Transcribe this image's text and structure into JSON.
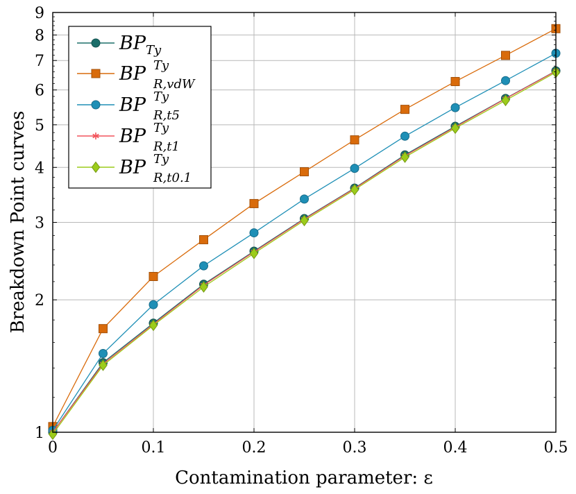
{
  "chart_data": {
    "type": "line",
    "title": "",
    "xlabel": "Contamination parameter: ε",
    "ylabel": "Breakdown Point curves",
    "y_scale": "log",
    "xlim": [
      0,
      0.5
    ],
    "ylim": [
      1,
      9
    ],
    "x_ticks": [
      "0",
      "0.1",
      "0.2",
      "0.3",
      "0.4",
      "0.5"
    ],
    "y_ticks": [
      "1",
      "2",
      "3",
      "4",
      "5",
      "6",
      "7",
      "8",
      "9"
    ],
    "grid": true,
    "legend_position": "top-left",
    "x": [
      0,
      0.05,
      0.1,
      0.15,
      0.2,
      0.25,
      0.3,
      0.35,
      0.4,
      0.45,
      0.5
    ],
    "series": [
      {
        "name": "BP_{Ty}",
        "label_base": "BP",
        "label_sup": "",
        "label_sub": "Ty",
        "color": "#1b6e6a",
        "marker": "circle",
        "values": [
          1.0,
          1.44,
          1.77,
          2.17,
          2.58,
          3.06,
          3.59,
          4.27,
          4.96,
          5.74,
          6.63
        ]
      },
      {
        "name": "BP^{Ty}_{R,vdW}",
        "label_base": "BP",
        "label_sup": "Ty",
        "label_sub": "R,vdW",
        "color": "#d96b0b",
        "marker": "square",
        "values": [
          1.03,
          1.72,
          2.26,
          2.74,
          3.31,
          3.91,
          4.62,
          5.42,
          6.27,
          7.19,
          8.27
        ]
      },
      {
        "name": "BP^{Ty}_{R,t5}",
        "label_base": "BP",
        "label_sup": "Ty",
        "label_sub": "R,t5",
        "color": "#1e8fb6",
        "marker": "circle",
        "values": [
          1.01,
          1.51,
          1.95,
          2.39,
          2.84,
          3.39,
          3.98,
          4.71,
          5.47,
          6.3,
          7.27
        ]
      },
      {
        "name": "BP^{Ty}_{R,t1}",
        "label_base": "BP",
        "label_sup": "Ty",
        "label_sub": "R,t1",
        "color": "#f2545b",
        "marker": "star",
        "values": [
          1.0,
          1.43,
          1.76,
          2.16,
          2.57,
          3.05,
          3.58,
          4.25,
          4.94,
          5.73,
          6.62
        ]
      },
      {
        "name": "BP^{Ty}_{R,t0.1}",
        "label_base": "BP",
        "label_sup": "Ty",
        "label_sub": "R,t0.1",
        "color": "#9ccc1a",
        "marker": "diamond",
        "values": [
          0.99,
          1.42,
          1.75,
          2.14,
          2.55,
          3.03,
          3.56,
          4.22,
          4.91,
          5.68,
          6.58
        ]
      }
    ]
  }
}
